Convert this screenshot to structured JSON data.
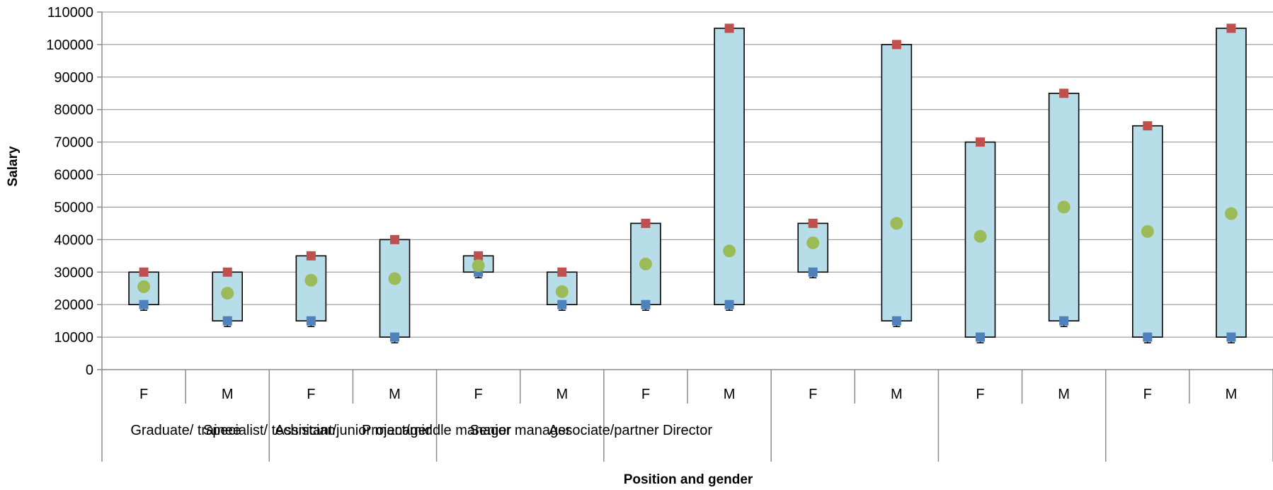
{
  "chart_data": {
    "type": "bar",
    "subtype": "floating-range with min / max / average markers",
    "title": "",
    "xlabel": "Position and gender",
    "ylabel": "Salary",
    "ylim": [
      0,
      110000
    ],
    "yticks": [
      0,
      10000,
      20000,
      30000,
      40000,
      50000,
      60000,
      70000,
      80000,
      90000,
      100000,
      110000
    ],
    "grid": true,
    "legend": "none",
    "groups": [
      "Graduate/ trainee",
      "Specialist/ technician",
      "Assistant/junior manager",
      "Project/middle manager",
      "Senior manager",
      "Associate/partner",
      "Director"
    ],
    "categories": [
      {
        "group": 0,
        "gender": "F",
        "min": 20000,
        "max": 30000,
        "avg": 25500
      },
      {
        "group": 0,
        "gender": "M",
        "min": 15000,
        "max": 30000,
        "avg": 23500
      },
      {
        "group": 1,
        "gender": "F",
        "min": 15000,
        "max": 35000,
        "avg": 27500
      },
      {
        "group": 1,
        "gender": "M",
        "min": 10000,
        "max": 40000,
        "avg": 28000
      },
      {
        "group": 2,
        "gender": "F",
        "min": 30000,
        "max": 35000,
        "avg": 32000
      },
      {
        "group": 2,
        "gender": "M",
        "min": 20000,
        "max": 30000,
        "avg": 24000
      },
      {
        "group": 3,
        "gender": "F",
        "min": 20000,
        "max": 45000,
        "avg": 32500
      },
      {
        "group": 3,
        "gender": "M",
        "min": 20000,
        "max": 105000,
        "avg": 36500
      },
      {
        "group": 4,
        "gender": "F",
        "min": 30000,
        "max": 45000,
        "avg": 39000
      },
      {
        "group": 4,
        "gender": "M",
        "min": 15000,
        "max": 100000,
        "avg": 45000
      },
      {
        "group": 5,
        "gender": "F",
        "min": 10000,
        "max": 70000,
        "avg": 41000
      },
      {
        "group": 5,
        "gender": "M",
        "min": 15000,
        "max": 85000,
        "avg": 50000
      },
      {
        "group": 6,
        "gender": "F",
        "min": 10000,
        "max": 75000,
        "avg": 42500
      },
      {
        "group": 6,
        "gender": "M",
        "min": 10000,
        "max": 105000,
        "avg": 48000
      }
    ],
    "colors": {
      "range_fill": "#b7dde8",
      "min_marker": "#4f81bd",
      "max_marker": "#c0504d",
      "avg_marker": "#9bbb59"
    }
  }
}
